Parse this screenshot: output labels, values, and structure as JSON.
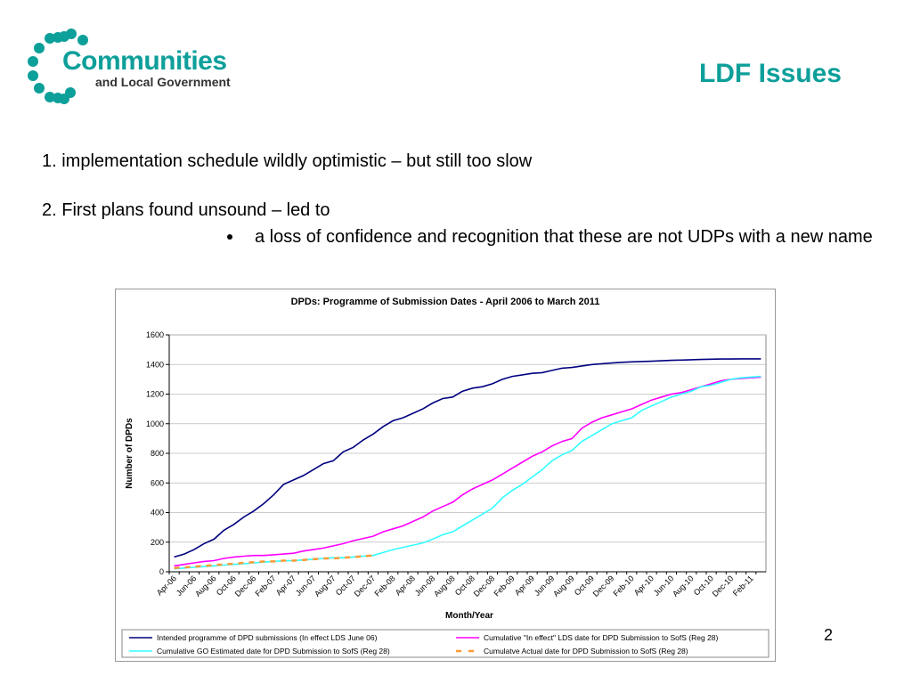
{
  "logo": {
    "name": "Communities",
    "subname": "and Local Government"
  },
  "header": {
    "title": "LDF Issues"
  },
  "points": [
    "1. implementation schedule wildly optimistic – but still too slow",
    "2. First plans found unsound – led to"
  ],
  "subpoints": [
    "a loss of confidence and recognition that these are not UDPs with a new name"
  ],
  "page_number": "2",
  "chart_data": {
    "type": "line",
    "title": "DPDs: Programme of Submission Dates - April 2006 to March 2011",
    "x_label": "Month/Year",
    "y_label": "Number of DPDs",
    "categories": [
      "Apr-06",
      null,
      "Jun-06",
      null,
      "Aug-06",
      null,
      "Oct-06",
      null,
      "Dec-06",
      null,
      "Feb-07",
      null,
      "Apr-07",
      null,
      "Jun-07",
      null,
      "Aug-07",
      null,
      "Oct-07",
      null,
      "Dec-07",
      null,
      "Feb-08",
      null,
      "Apr-08",
      null,
      "Jun-08",
      null,
      "Aug-08",
      null,
      "Oct-08",
      null,
      "Dec-08",
      null,
      "Feb-09",
      null,
      "Apr-09",
      null,
      "Jun-09",
      null,
      "Aug-09",
      null,
      "Oct-09",
      null,
      "Dec-09",
      null,
      "Feb-10",
      null,
      "Apr-10",
      null,
      "Jun-10",
      null,
      "Aug-10",
      null,
      "Oct-10",
      null,
      "Dec-10",
      null,
      "Feb-11",
      null
    ],
    "ylim": [
      0,
      1600
    ],
    "yticks": [
      0,
      200,
      400,
      600,
      800,
      1000,
      1200,
      1400,
      1600
    ],
    "grid": true,
    "series": [
      {
        "name": "Intended programme of DPD submissions (In effect LDS June 06)",
        "color": "#000080",
        "style": "solid",
        "values": [
          100,
          120,
          150,
          190,
          220,
          280,
          320,
          370,
          410,
          460,
          520,
          590,
          620,
          650,
          690,
          730,
          750,
          810,
          840,
          890,
          930,
          980,
          1020,
          1040,
          1070,
          1100,
          1140,
          1170,
          1180,
          1220,
          1240,
          1250,
          1270,
          1300,
          1320,
          1330,
          1340,
          1345,
          1360,
          1375,
          1380,
          1390,
          1400,
          1405,
          1410,
          1415,
          1418,
          1420,
          1422,
          1425,
          1428,
          1430,
          1432,
          1434,
          1436,
          1437,
          1437,
          1438,
          1438,
          1438
        ]
      },
      {
        "name": "Cumulative \"In effect\" LDS date for DPD Submission to SofS (Reg 28)",
        "color": "#ff00ff",
        "style": "solid",
        "values": [
          40,
          50,
          60,
          70,
          75,
          90,
          100,
          105,
          110,
          110,
          115,
          120,
          125,
          140,
          150,
          160,
          175,
          190,
          210,
          225,
          240,
          270,
          290,
          310,
          340,
          370,
          410,
          440,
          470,
          520,
          560,
          590,
          620,
          660,
          700,
          740,
          780,
          810,
          850,
          880,
          900,
          970,
          1010,
          1040,
          1060,
          1080,
          1100,
          1130,
          1160,
          1180,
          1200,
          1210,
          1230,
          1250,
          1270,
          1290,
          1300,
          1305,
          1310,
          1315
        ]
      },
      {
        "name": "Cumulative GO Estimated date for DPD Submission to SofS (Reg 28)",
        "color": "#33ffff",
        "style": "solid",
        "values": [
          20,
          25,
          30,
          35,
          40,
          45,
          50,
          55,
          60,
          65,
          70,
          75,
          75,
          80,
          85,
          90,
          95,
          95,
          100,
          105,
          110,
          130,
          150,
          165,
          180,
          195,
          220,
          250,
          270,
          310,
          350,
          390,
          430,
          500,
          550,
          590,
          640,
          690,
          750,
          790,
          820,
          880,
          920,
          960,
          1000,
          1020,
          1040,
          1090,
          1120,
          1150,
          1180,
          1200,
          1220,
          1250,
          1260,
          1280,
          1300,
          1310,
          1315,
          1320
        ]
      },
      {
        "name": "Cumulatve Actual date for DPD Submission to SofS (Reg 28)",
        "color": "#ff9933",
        "style": "dashed",
        "values": [
          25,
          30,
          35,
          40,
          45,
          50,
          55,
          60,
          65,
          70,
          70,
          75,
          75,
          80,
          85,
          90,
          90,
          95,
          100,
          105,
          110,
          null,
          null,
          null,
          null,
          null,
          null,
          null,
          null,
          null,
          null,
          null,
          null,
          null,
          null,
          null,
          null,
          null,
          null,
          null,
          null,
          null,
          null,
          null,
          null,
          null,
          null,
          null,
          null,
          null,
          null,
          null,
          null,
          null,
          null,
          null,
          null,
          null,
          null,
          null
        ]
      }
    ]
  }
}
